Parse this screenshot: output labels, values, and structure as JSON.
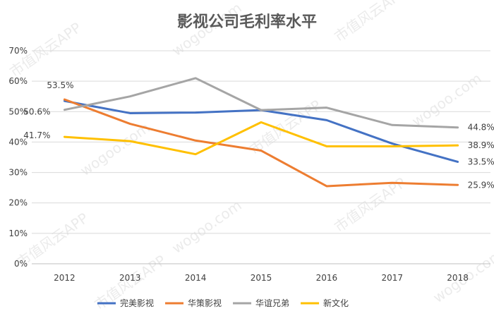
{
  "watermark": {
    "text_cn": "市值风云APP",
    "text_url": "wogoo.com"
  },
  "chart_data": {
    "type": "line",
    "title": "影视公司毛利率水平",
    "xlabel": "",
    "ylabel": "",
    "categories": [
      "2012",
      "2013",
      "2014",
      "2015",
      "2016",
      "2017",
      "2018"
    ],
    "yticks": [
      "0%",
      "10%",
      "20%",
      "30%",
      "40%",
      "50%",
      "60%",
      "70%"
    ],
    "ylim": [
      0,
      70
    ],
    "grid": true,
    "legend_position": "bottom",
    "series": [
      {
        "name": "完美影视",
        "color": "#4472C4",
        "values": [
          53.5,
          49.5,
          49.7,
          50.5,
          47.2,
          39.5,
          33.5
        ]
      },
      {
        "name": "华策影视",
        "color": "#ED7D31",
        "values": [
          54.0,
          46.0,
          40.5,
          37.2,
          25.5,
          26.6,
          25.9
        ]
      },
      {
        "name": "华谊兄弟",
        "color": "#A5A5A5",
        "values": [
          50.6,
          55.0,
          61.0,
          50.5,
          51.3,
          45.6,
          44.8
        ]
      },
      {
        "name": "新文化",
        "color": "#FFC000",
        "values": [
          41.7,
          40.3,
          36.0,
          46.5,
          38.6,
          38.6,
          38.9
        ]
      }
    ],
    "data_labels": {
      "start": [
        {
          "series": "完美影视",
          "text": "53.5%"
        },
        {
          "series": "华谊兄弟",
          "text": "50.6%"
        },
        {
          "series": "新文化",
          "text": "41.7%"
        }
      ],
      "end": [
        {
          "series": "华谊兄弟",
          "text": "44.8%"
        },
        {
          "series": "新文化",
          "text": "38.9%"
        },
        {
          "series": "完美影视",
          "text": "33.5%"
        },
        {
          "series": "华策影视",
          "text": "25.9%"
        }
      ]
    }
  }
}
